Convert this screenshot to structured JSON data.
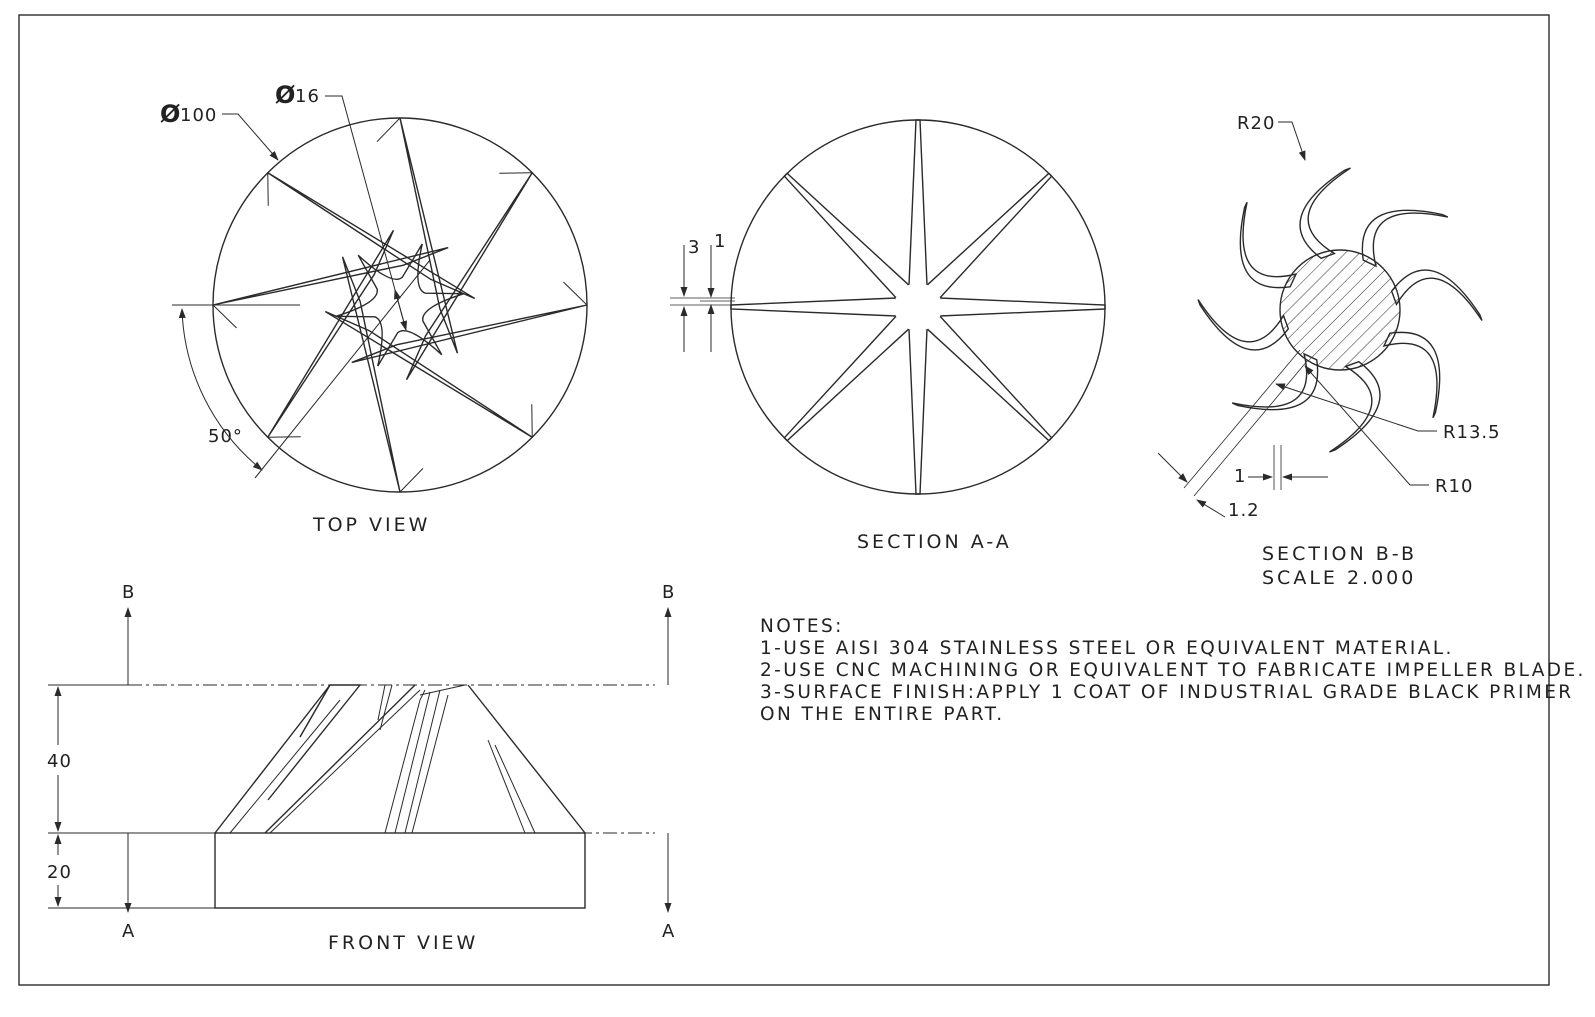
{
  "views": {
    "top_view": "TOP VIEW",
    "section_aa": "SECTION A-A",
    "section_bb": "SECTION B-B",
    "section_bb_scale": "SCALE 2.000",
    "front_view": "FRONT VIEW"
  },
  "dimensions": {
    "outer_diameter": "100",
    "hub_diameter": "16",
    "blade_angle": "50°",
    "section_aa_thickness_3": "3",
    "section_aa_thickness_1": "1",
    "r20": "R20",
    "r13_5": "R13.5",
    "r10": "R10",
    "bb_thickness_1": "1",
    "bb_thickness_1_2": "1.2",
    "front_height_40": "40",
    "front_height_20": "20"
  },
  "section_markers": {
    "b_left": "B",
    "b_right": "B",
    "a_left": "A",
    "a_right": "A"
  },
  "notes": {
    "heading": "NOTES:",
    "lines": [
      "1-USE AISI 304 STAINLESS STEEL OR EQUIVALENT MATERIAL.",
      "2-USE CNC MACHINING OR EQUIVALENT TO FABRICATE IMPELLER BLADE.",
      "3-SURFACE FINISH:APPLY 1 COAT OF INDUSTRIAL GRADE BLACK PRIMER",
      "ON THE ENTIRE PART."
    ]
  }
}
